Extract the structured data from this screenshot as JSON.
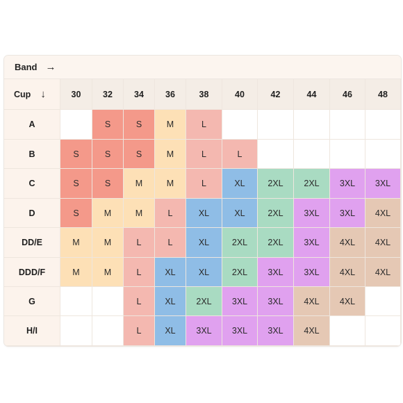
{
  "band_label": "Band",
  "band_arrow": "→",
  "cup_label": "Cup",
  "cup_arrow": "↓",
  "bands": [
    "30",
    "32",
    "34",
    "36",
    "38",
    "40",
    "42",
    "44",
    "46",
    "48"
  ],
  "cups": [
    "A",
    "B",
    "C",
    "D",
    "DD/E",
    "DDD/F",
    "G",
    "H/I"
  ],
  "sizes": [
    [
      "",
      "S",
      "S",
      "M",
      "L",
      "",
      "",
      "",
      "",
      ""
    ],
    [
      "S",
      "S",
      "S",
      "M",
      "L",
      "L",
      "",
      "",
      "",
      ""
    ],
    [
      "S",
      "S",
      "M",
      "M",
      "L",
      "XL",
      "2XL",
      "2XL",
      "3XL",
      "3XL"
    ],
    [
      "S",
      "M",
      "M",
      "L",
      "XL",
      "XL",
      "2XL",
      "3XL",
      "3XL",
      "4XL"
    ],
    [
      "M",
      "M",
      "L",
      "L",
      "XL",
      "2XL",
      "2XL",
      "3XL",
      "4XL",
      "4XL"
    ],
    [
      "M",
      "M",
      "L",
      "XL",
      "XL",
      "2XL",
      "3XL",
      "3XL",
      "4XL",
      "4XL"
    ],
    [
      "",
      "",
      "L",
      "XL",
      "2XL",
      "3XL",
      "3XL",
      "4XL",
      "4XL",
      ""
    ],
    [
      "",
      "",
      "L",
      "XL",
      "3XL",
      "3XL",
      "3XL",
      "4XL",
      "",
      ""
    ]
  ],
  "size_colors": {
    "S": "#f4998a",
    "M": "#fde0b6",
    "L": "#f4b8b0",
    "XL": "#8fbde6",
    "2XL": "#a9dbc2",
    "3XL": "#e0a1ef",
    "4XL": "#e5c8b4"
  }
}
